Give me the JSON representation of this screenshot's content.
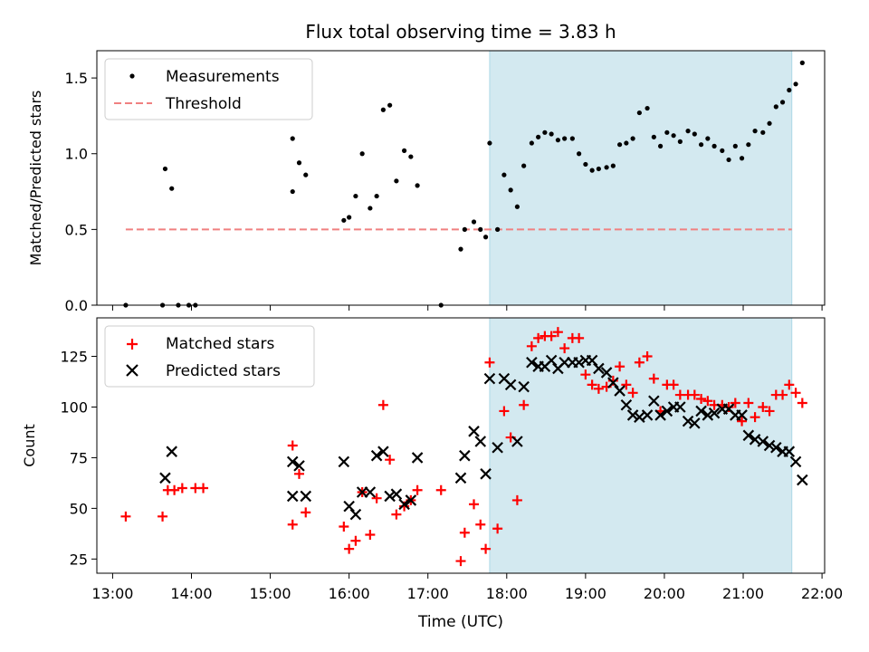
{
  "chart_data": [
    {
      "type": "scatter",
      "title": "Flux total observing time = 3.83 h",
      "ylabel": "Matched/Predicted stars",
      "xlabel": "",
      "xlim": [
        "12:48",
        "22:02"
      ],
      "ylim": [
        0,
        1.68
      ],
      "yticks": [
        "0.0",
        "0.5",
        "1.0",
        "1.5"
      ],
      "legend_position": "top-left",
      "shaded_interval": {
        "start": "17:47",
        "end": "21:37",
        "color": "#d3e9f0"
      },
      "threshold": {
        "name": "Threshold",
        "value": 0.5,
        "x": [
          "13:10",
          "21:37"
        ],
        "color": "#f08080"
      },
      "series": [
        {
          "name": "Measurements",
          "color": "#000000",
          "points": [
            [
              "13:10",
              0.0
            ],
            [
              "13:38",
              0.0
            ],
            [
              "13:40",
              0.9
            ],
            [
              "13:45",
              0.77
            ],
            [
              "13:50",
              0.0
            ],
            [
              "13:58",
              0.0
            ],
            [
              "14:03",
              0.0
            ],
            [
              "15:17",
              1.1
            ],
            [
              "15:17",
              0.75
            ],
            [
              "15:22",
              0.94
            ],
            [
              "15:27",
              0.86
            ],
            [
              "15:56",
              0.56
            ],
            [
              "16:00",
              0.58
            ],
            [
              "16:05",
              0.72
            ],
            [
              "16:10",
              1.0
            ],
            [
              "16:16",
              0.64
            ],
            [
              "16:21",
              0.72
            ],
            [
              "16:26",
              1.29
            ],
            [
              "16:31",
              1.32
            ],
            [
              "16:36",
              0.82
            ],
            [
              "16:42",
              1.02
            ],
            [
              "16:47",
              0.98
            ],
            [
              "16:52",
              0.79
            ],
            [
              "17:10",
              0.0
            ],
            [
              "17:25",
              0.37
            ],
            [
              "17:28",
              0.5
            ],
            [
              "17:35",
              0.55
            ],
            [
              "17:40",
              0.5
            ],
            [
              "17:44",
              0.45
            ],
            [
              "17:47",
              1.07
            ],
            [
              "17:53",
              0.5
            ],
            [
              "17:58",
              0.86
            ],
            [
              "18:03",
              0.76
            ],
            [
              "18:08",
              0.65
            ],
            [
              "18:13",
              0.92
            ],
            [
              "18:19",
              1.07
            ],
            [
              "18:24",
              1.11
            ],
            [
              "18:29",
              1.14
            ],
            [
              "18:34",
              1.13
            ],
            [
              "18:39",
              1.09
            ],
            [
              "18:44",
              1.1
            ],
            [
              "18:50",
              1.1
            ],
            [
              "18:55",
              1.0
            ],
            [
              "19:00",
              0.93
            ],
            [
              "19:05",
              0.89
            ],
            [
              "19:10",
              0.9
            ],
            [
              "19:16",
              0.91
            ],
            [
              "19:21",
              0.92
            ],
            [
              "19:26",
              1.06
            ],
            [
              "19:31",
              1.07
            ],
            [
              "19:36",
              1.1
            ],
            [
              "19:41",
              1.27
            ],
            [
              "19:47",
              1.3
            ],
            [
              "19:52",
              1.11
            ],
            [
              "19:57",
              1.05
            ],
            [
              "20:02",
              1.14
            ],
            [
              "20:07",
              1.12
            ],
            [
              "20:12",
              1.08
            ],
            [
              "20:18",
              1.15
            ],
            [
              "20:23",
              1.13
            ],
            [
              "20:28",
              1.06
            ],
            [
              "20:33",
              1.1
            ],
            [
              "20:38",
              1.05
            ],
            [
              "20:44",
              1.02
            ],
            [
              "20:49",
              0.96
            ],
            [
              "20:54",
              1.05
            ],
            [
              "20:59",
              0.97
            ],
            [
              "21:04",
              1.06
            ],
            [
              "21:09",
              1.15
            ],
            [
              "21:15",
              1.14
            ],
            [
              "21:20",
              1.2
            ],
            [
              "21:25",
              1.31
            ],
            [
              "21:30",
              1.34
            ],
            [
              "21:35",
              1.42
            ],
            [
              "21:40",
              1.46
            ],
            [
              "21:45",
              1.6
            ]
          ]
        }
      ]
    },
    {
      "type": "scatter",
      "title": "",
      "xlabel": "Time (UTC)",
      "ylabel": "Count",
      "xlim": [
        "12:48",
        "22:02"
      ],
      "ylim": [
        18,
        144
      ],
      "yticks": [
        "25",
        "50",
        "75",
        "100",
        "125"
      ],
      "xticks": [
        "13:00",
        "14:00",
        "15:00",
        "16:00",
        "17:00",
        "18:00",
        "19:00",
        "20:00",
        "21:00",
        "22:00"
      ],
      "legend_position": "top-left",
      "shaded_interval": {
        "start": "17:47",
        "end": "21:37",
        "color": "#d3e9f0"
      },
      "series": [
        {
          "name": "Matched stars",
          "marker": "plus",
          "color": "#ff0000",
          "points": [
            [
              "13:10",
              46
            ],
            [
              "13:38",
              46
            ],
            [
              "13:42",
              59
            ],
            [
              "13:47",
              59
            ],
            [
              "13:53",
              60
            ],
            [
              "14:03",
              60
            ],
            [
              "14:09",
              60
            ],
            [
              "15:17",
              42
            ],
            [
              "15:17",
              81
            ],
            [
              "15:22",
              67
            ],
            [
              "15:27",
              48
            ],
            [
              "15:56",
              41
            ],
            [
              "16:00",
              30
            ],
            [
              "16:05",
              34
            ],
            [
              "16:10",
              58
            ],
            [
              "16:16",
              37
            ],
            [
              "16:21",
              55
            ],
            [
              "16:26",
              101
            ],
            [
              "16:31",
              74
            ],
            [
              "16:36",
              47
            ],
            [
              "16:42",
              51
            ],
            [
              "16:47",
              54
            ],
            [
              "16:52",
              59
            ],
            [
              "17:10",
              59
            ],
            [
              "17:25",
              24
            ],
            [
              "17:28",
              38
            ],
            [
              "17:35",
              52
            ],
            [
              "17:40",
              42
            ],
            [
              "17:44",
              30
            ],
            [
              "17:47",
              122
            ],
            [
              "17:53",
              40
            ],
            [
              "17:58",
              98
            ],
            [
              "18:03",
              85
            ],
            [
              "18:08",
              54
            ],
            [
              "18:13",
              101
            ],
            [
              "18:19",
              130
            ],
            [
              "18:24",
              134
            ],
            [
              "18:29",
              135
            ],
            [
              "18:34",
              135
            ],
            [
              "18:39",
              137
            ],
            [
              "18:44",
              129
            ],
            [
              "18:50",
              134
            ],
            [
              "18:55",
              134
            ],
            [
              "19:00",
              116
            ],
            [
              "19:05",
              111
            ],
            [
              "19:10",
              109
            ],
            [
              "19:16",
              110
            ],
            [
              "19:21",
              113
            ],
            [
              "19:26",
              120
            ],
            [
              "19:31",
              111
            ],
            [
              "19:36",
              107
            ],
            [
              "19:41",
              122
            ],
            [
              "19:47",
              125
            ],
            [
              "19:52",
              114
            ],
            [
              "19:57",
              98
            ],
            [
              "20:02",
              111
            ],
            [
              "20:07",
              111
            ],
            [
              "20:12",
              106
            ],
            [
              "20:18",
              106
            ],
            [
              "20:23",
              106
            ],
            [
              "20:28",
              104
            ],
            [
              "20:33",
              103
            ],
            [
              "20:38",
              101
            ],
            [
              "20:44",
              101
            ],
            [
              "20:49",
              100
            ],
            [
              "20:54",
              102
            ],
            [
              "20:59",
              93
            ],
            [
              "21:04",
              102
            ],
            [
              "21:09",
              95
            ],
            [
              "21:15",
              100
            ],
            [
              "21:20",
              98
            ],
            [
              "21:25",
              106
            ],
            [
              "21:30",
              106
            ],
            [
              "21:35",
              111
            ],
            [
              "21:40",
              107
            ],
            [
              "21:45",
              102
            ]
          ]
        },
        {
          "name": "Predicted stars",
          "marker": "x",
          "color": "#000000",
          "points": [
            [
              "13:40",
              65
            ],
            [
              "13:45",
              78
            ],
            [
              "15:17",
              56
            ],
            [
              "15:17",
              73
            ],
            [
              "15:22",
              71
            ],
            [
              "15:27",
              56
            ],
            [
              "15:56",
              73
            ],
            [
              "16:00",
              51
            ],
            [
              "16:05",
              47
            ],
            [
              "16:10",
              58
            ],
            [
              "16:16",
              58
            ],
            [
              "16:21",
              76
            ],
            [
              "16:26",
              78
            ],
            [
              "16:31",
              56
            ],
            [
              "16:36",
              57
            ],
            [
              "16:42",
              52
            ],
            [
              "16:47",
              54
            ],
            [
              "16:52",
              75
            ],
            [
              "17:25",
              65
            ],
            [
              "17:28",
              76
            ],
            [
              "17:35",
              88
            ],
            [
              "17:40",
              83
            ],
            [
              "17:44",
              67
            ],
            [
              "17:47",
              114
            ],
            [
              "17:53",
              80
            ],
            [
              "17:58",
              114
            ],
            [
              "18:03",
              111
            ],
            [
              "18:08",
              83
            ],
            [
              "18:13",
              110
            ],
            [
              "18:19",
              122
            ],
            [
              "18:24",
              120
            ],
            [
              "18:29",
              120
            ],
            [
              "18:34",
              123
            ],
            [
              "18:39",
              119
            ],
            [
              "18:44",
              122
            ],
            [
              "18:50",
              122
            ],
            [
              "18:55",
              122
            ],
            [
              "19:00",
              123
            ],
            [
              "19:05",
              123
            ],
            [
              "19:10",
              119
            ],
            [
              "19:16",
              117
            ],
            [
              "19:21",
              112
            ],
            [
              "19:26",
              108
            ],
            [
              "19:31",
              101
            ],
            [
              "19:36",
              96
            ],
            [
              "19:41",
              95
            ],
            [
              "19:47",
              96
            ],
            [
              "19:52",
              103
            ],
            [
              "19:57",
              96
            ],
            [
              "20:02",
              98
            ],
            [
              "20:07",
              100
            ],
            [
              "20:12",
              100
            ],
            [
              "20:18",
              93
            ],
            [
              "20:23",
              92
            ],
            [
              "20:28",
              98
            ],
            [
              "20:33",
              96
            ],
            [
              "20:38",
              97
            ],
            [
              "20:44",
              99
            ],
            [
              "20:49",
              99
            ],
            [
              "20:54",
              96
            ],
            [
              "20:59",
              96
            ],
            [
              "21:04",
              86
            ],
            [
              "21:09",
              84
            ],
            [
              "21:15",
              83
            ],
            [
              "21:20",
              81
            ],
            [
              "21:25",
              80
            ],
            [
              "21:30",
              78
            ],
            [
              "21:35",
              78
            ],
            [
              "21:40",
              73
            ],
            [
              "21:45",
              64
            ]
          ]
        }
      ]
    }
  ]
}
